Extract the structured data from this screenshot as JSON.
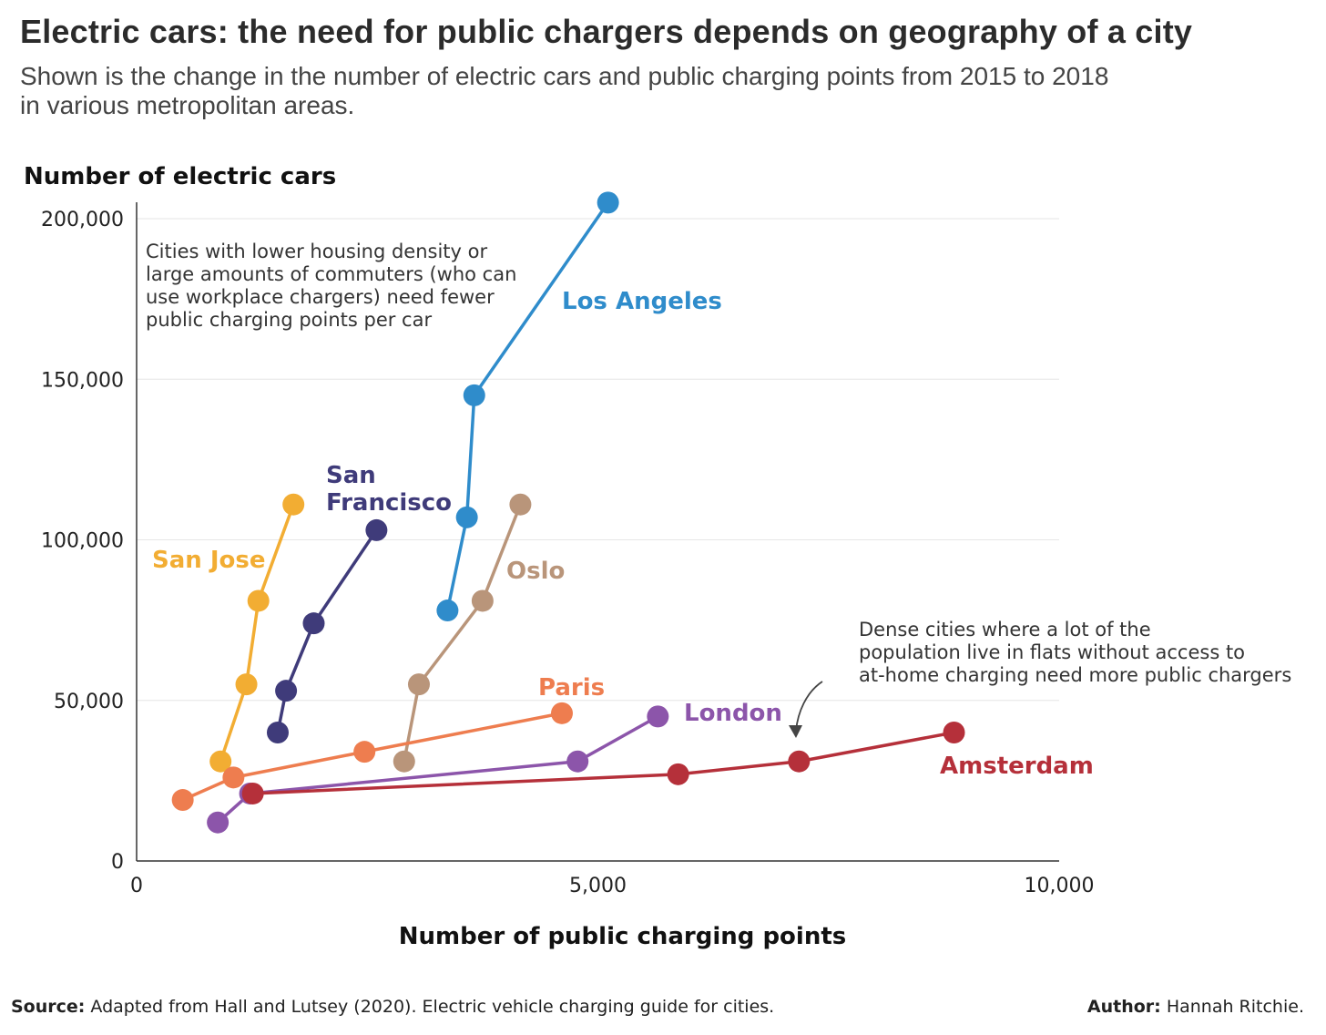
{
  "title": "Electric cars: the need for public chargers depends on geography of a city",
  "subtitle": [
    "Shown is the change in the number of electric cars and public charging points from 2015 to 2018",
    "in various metropolitan areas."
  ],
  "footer": {
    "source_label": "Source:",
    "source_text": " Adapted from Hall and Lutsey (2020). Electric vehicle charging guide for cities.",
    "author_label": "Author:",
    "author_text": " Hannah Ritchie."
  },
  "chart_data": {
    "type": "line",
    "xlabel": "Number of public charging points",
    "ylabel": "Number of electric cars",
    "xlim": [
      0,
      10000
    ],
    "ylim": [
      0,
      200000
    ],
    "xticks": [
      0,
      5000,
      10000
    ],
    "xtick_labels": [
      "0",
      "5,000",
      "10,000"
    ],
    "yticks": [
      0,
      50000,
      100000,
      150000,
      200000
    ],
    "ytick_labels": [
      "0",
      "50,000",
      "100,000",
      "150,000",
      "200,000"
    ],
    "grid": true,
    "series": [
      {
        "name": "San Jose",
        "color": "#f2ad33",
        "points": [
          [
            910,
            31000
          ],
          [
            1190,
            55000
          ],
          [
            1320,
            81000
          ],
          [
            1700,
            111000
          ]
        ]
      },
      {
        "name": "San Francisco",
        "color": "#3f3b7a",
        "points": [
          [
            1530,
            40000
          ],
          [
            1620,
            53000
          ],
          [
            1920,
            74000
          ],
          [
            2600,
            103000
          ]
        ]
      },
      {
        "name": "Los Angeles",
        "color": "#2f8ccb",
        "points": [
          [
            3370,
            78000
          ],
          [
            3580,
            107000
          ],
          [
            3660,
            145000
          ],
          [
            5110,
            205000
          ]
        ]
      },
      {
        "name": "Oslo",
        "color": "#b9957a",
        "points": [
          [
            2900,
            31000
          ],
          [
            3060,
            55000
          ],
          [
            3750,
            81000
          ],
          [
            4160,
            111000
          ]
        ]
      },
      {
        "name": "Paris",
        "color": "#ee7d4f",
        "points": [
          [
            500,
            19000
          ],
          [
            1050,
            26000
          ],
          [
            2470,
            34000
          ],
          [
            4610,
            46000
          ]
        ]
      },
      {
        "name": "London",
        "color": "#8c55aa",
        "points": [
          [
            880,
            12000
          ],
          [
            1230,
            21000
          ],
          [
            4780,
            31000
          ],
          [
            5650,
            45000
          ]
        ]
      },
      {
        "name": "Amsterdam",
        "color": "#b5303a",
        "points": [
          [
            1260,
            21000
          ],
          [
            5870,
            27000
          ],
          [
            7180,
            31000
          ],
          [
            8860,
            40000
          ]
        ]
      }
    ],
    "annotations": [
      {
        "lines": [
          "Cities with lower housing density or",
          "large amounts of commuters (who can",
          "use workplace chargers) need fewer",
          "public charging points per car"
        ]
      },
      {
        "lines": [
          "Dense cities where a lot of the",
          "population live in flats without access to",
          "at-home charging need more public chargers"
        ]
      }
    ]
  }
}
